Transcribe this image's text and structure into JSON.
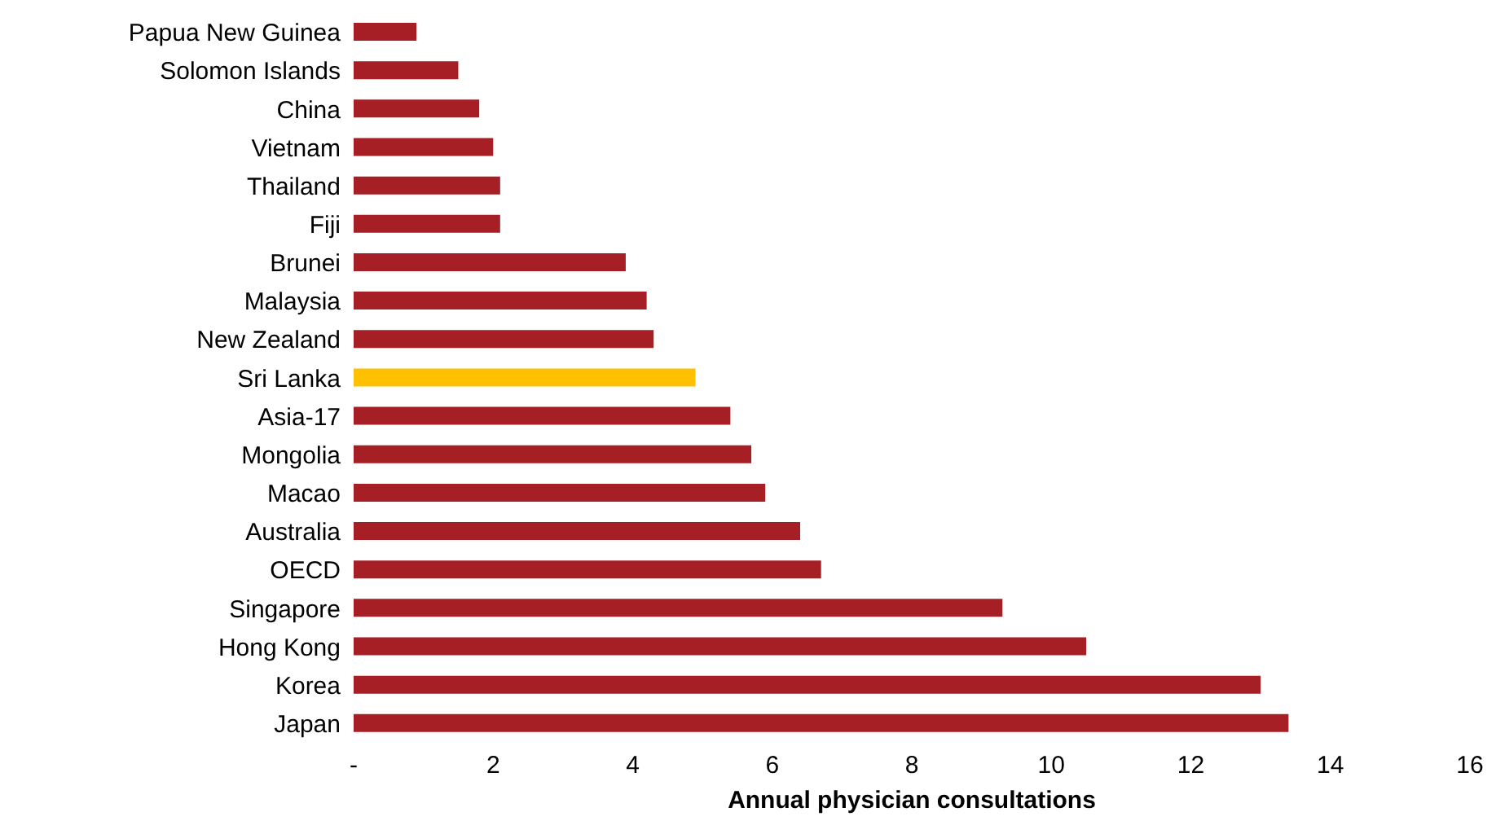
{
  "chart_data": {
    "type": "bar",
    "orientation": "horizontal",
    "xlabel": "Annual physician consultations",
    "categories": [
      "Papua New Guinea",
      "Solomon Islands",
      "China",
      "Vietnam",
      "Thailand",
      "Fiji",
      "Brunei",
      "Malaysia",
      "New Zealand",
      "Sri Lanka",
      "Asia-17",
      "Mongolia",
      "Macao",
      "Australia",
      "OECD",
      "Singapore",
      "Hong Kong",
      "Korea",
      "Japan"
    ],
    "values": [
      0.9,
      1.5,
      1.8,
      2.0,
      2.1,
      2.1,
      3.9,
      4.2,
      4.3,
      4.9,
      5.4,
      5.7,
      5.9,
      6.4,
      6.7,
      9.3,
      10.5,
      13.0,
      13.4
    ],
    "colors": [
      "#a51f24",
      "#a51f24",
      "#a51f24",
      "#a51f24",
      "#a51f24",
      "#a51f24",
      "#a51f24",
      "#a51f24",
      "#a51f24",
      "#ffc000",
      "#a51f24",
      "#a51f24",
      "#a51f24",
      "#a51f24",
      "#a51f24",
      "#a51f24",
      "#a51f24",
      "#a51f24",
      "#a51f24"
    ],
    "xlim": [
      0,
      16
    ],
    "xticks": [
      {
        "value": 0,
        "label": "-"
      },
      2,
      4,
      6,
      8,
      10,
      12,
      14,
      16
    ],
    "grid": false
  }
}
